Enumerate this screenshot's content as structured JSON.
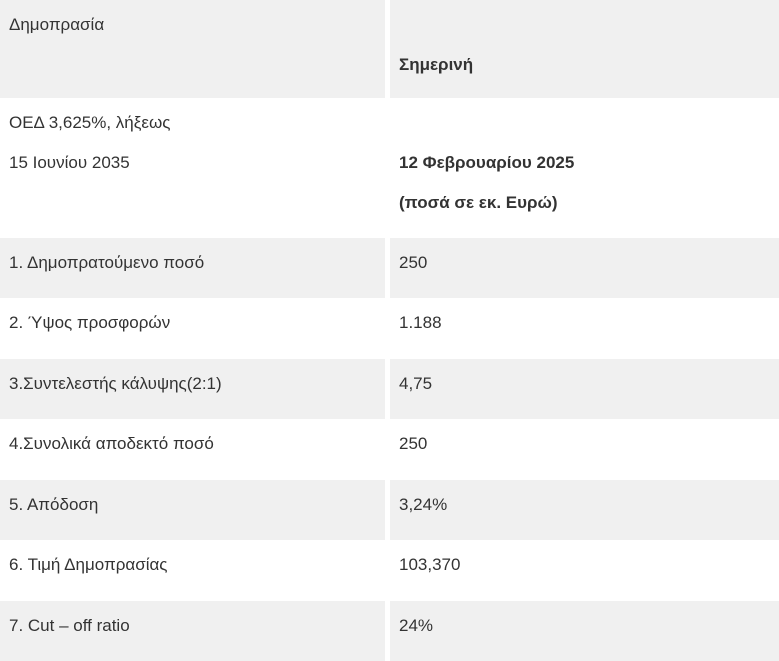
{
  "colors": {
    "stripe_bg": "#f0f0f0",
    "row_bg": "#ffffff",
    "divider": "#ffffff",
    "text": "#333333"
  },
  "table": {
    "header": {
      "col1_title": "Δημοπρασία",
      "col2_title": "Σημερινή"
    },
    "subheader": {
      "bond_line1": "ΟΕΔ 3,625%, λήξεως",
      "bond_line2": "15 Ιουνίου 2035",
      "date": "12 Φεβρουαρίου 2025",
      "units": "(ποσά σε εκ. Ευρώ)"
    },
    "rows": [
      {
        "label": "1. Δημοπρατούμενο ποσό",
        "value": "250"
      },
      {
        "label": "2. Ύψος προσφορών",
        "value": "1.188"
      },
      {
        "label": "3.Συντελεστής κάλυψης(2:1)",
        "value": "4,75"
      },
      {
        "label": "4.Συνολικά αποδεκτό ποσό",
        "value": "250"
      },
      {
        "label": "5. Απόδοση",
        "value": "3,24%"
      },
      {
        "label": "6. Τιμή Δημοπρασίας",
        "value": "103,370"
      },
      {
        "label": "7. Cut – off ratio",
        "value": "24%"
      }
    ]
  }
}
